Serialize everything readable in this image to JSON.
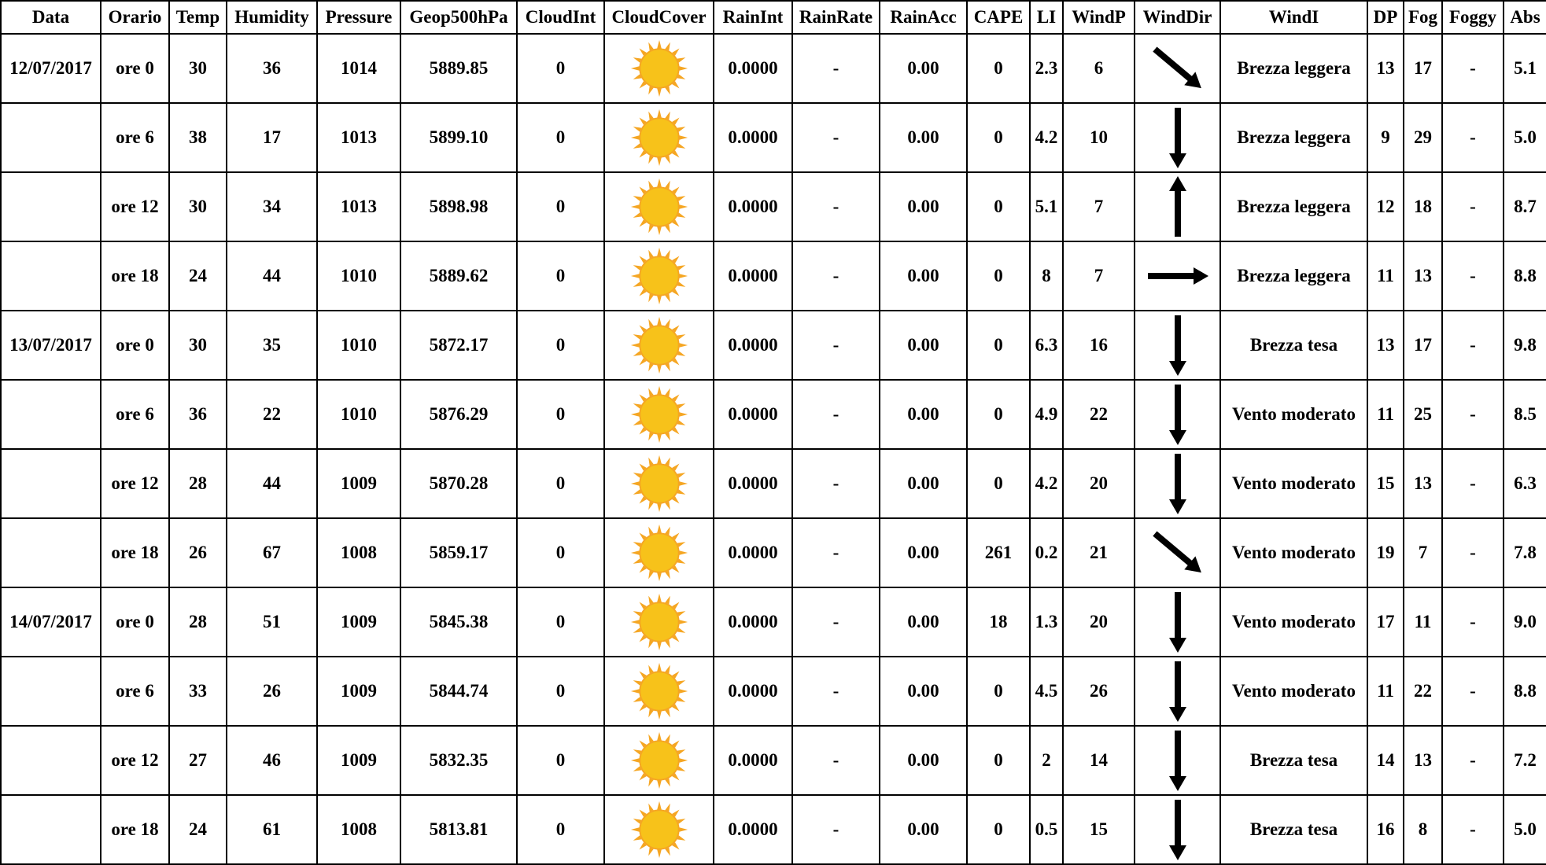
{
  "columns": [
    "Data",
    "Orario",
    "Temp",
    "Humidity",
    "Pressure",
    "Geop500hPa",
    "CloudInt",
    "CloudCover",
    "RainInt",
    "RainRate",
    "RainAcc",
    "CAPE",
    "LI",
    "WindP",
    "WindDir",
    "WindI",
    "DP",
    "Fog",
    "Foggy",
    "Abs"
  ],
  "colors": {
    "sun_center": "#f7c21a",
    "sun_rays": "#f5a623",
    "arrow": "#000000",
    "border": "#000000"
  },
  "rows": [
    {
      "date": "12/07/2017",
      "time": "ore 0",
      "temp": "30",
      "humidity": "36",
      "pressure": "1014",
      "geop": "5889.85",
      "cloud_int": "0",
      "cloud_cover_icon": "sun-icon",
      "rain_int": "0.0000",
      "rain_rate": "-",
      "rain_acc": "0.00",
      "cape": "0",
      "li": "2.3",
      "wind_p": "6",
      "wind_dir": "arrow-down-right-icon",
      "wind_i": "Brezza leggera",
      "dp": "13",
      "fog": "17",
      "foggy": "-",
      "abs": "5.1"
    },
    {
      "date": "",
      "time": "ore 6",
      "temp": "38",
      "humidity": "17",
      "pressure": "1013",
      "geop": "5899.10",
      "cloud_int": "0",
      "cloud_cover_icon": "sun-icon",
      "rain_int": "0.0000",
      "rain_rate": "-",
      "rain_acc": "0.00",
      "cape": "0",
      "li": "4.2",
      "wind_p": "10",
      "wind_dir": "arrow-down-icon",
      "wind_i": "Brezza leggera",
      "dp": "9",
      "fog": "29",
      "foggy": "-",
      "abs": "5.0"
    },
    {
      "date": "",
      "time": "ore 12",
      "temp": "30",
      "humidity": "34",
      "pressure": "1013",
      "geop": "5898.98",
      "cloud_int": "0",
      "cloud_cover_icon": "sun-icon",
      "rain_int": "0.0000",
      "rain_rate": "-",
      "rain_acc": "0.00",
      "cape": "0",
      "li": "5.1",
      "wind_p": "7",
      "wind_dir": "arrow-up-icon",
      "wind_i": "Brezza leggera",
      "dp": "12",
      "fog": "18",
      "foggy": "-",
      "abs": "8.7"
    },
    {
      "date": "",
      "time": "ore 18",
      "temp": "24",
      "humidity": "44",
      "pressure": "1010",
      "geop": "5889.62",
      "cloud_int": "0",
      "cloud_cover_icon": "sun-icon",
      "rain_int": "0.0000",
      "rain_rate": "-",
      "rain_acc": "0.00",
      "cape": "0",
      "li": "8",
      "wind_p": "7",
      "wind_dir": "arrow-right-icon",
      "wind_i": "Brezza leggera",
      "dp": "11",
      "fog": "13",
      "foggy": "-",
      "abs": "8.8"
    },
    {
      "date": "13/07/2017",
      "time": "ore 0",
      "temp": "30",
      "humidity": "35",
      "pressure": "1010",
      "geop": "5872.17",
      "cloud_int": "0",
      "cloud_cover_icon": "sun-icon",
      "rain_int": "0.0000",
      "rain_rate": "-",
      "rain_acc": "0.00",
      "cape": "0",
      "li": "6.3",
      "wind_p": "16",
      "wind_dir": "arrow-down-icon",
      "wind_i": "Brezza tesa",
      "dp": "13",
      "fog": "17",
      "foggy": "-",
      "abs": "9.8"
    },
    {
      "date": "",
      "time": "ore 6",
      "temp": "36",
      "humidity": "22",
      "pressure": "1010",
      "geop": "5876.29",
      "cloud_int": "0",
      "cloud_cover_icon": "sun-icon",
      "rain_int": "0.0000",
      "rain_rate": "-",
      "rain_acc": "0.00",
      "cape": "0",
      "li": "4.9",
      "wind_p": "22",
      "wind_dir": "arrow-down-icon",
      "wind_i": "Vento moderato",
      "dp": "11",
      "fog": "25",
      "foggy": "-",
      "abs": "8.5"
    },
    {
      "date": "",
      "time": "ore 12",
      "temp": "28",
      "humidity": "44",
      "pressure": "1009",
      "geop": "5870.28",
      "cloud_int": "0",
      "cloud_cover_icon": "sun-icon",
      "rain_int": "0.0000",
      "rain_rate": "-",
      "rain_acc": "0.00",
      "cape": "0",
      "li": "4.2",
      "wind_p": "20",
      "wind_dir": "arrow-down-icon",
      "wind_i": "Vento moderato",
      "dp": "15",
      "fog": "13",
      "foggy": "-",
      "abs": "6.3"
    },
    {
      "date": "",
      "time": "ore 18",
      "temp": "26",
      "humidity": "67",
      "pressure": "1008",
      "geop": "5859.17",
      "cloud_int": "0",
      "cloud_cover_icon": "sun-icon",
      "rain_int": "0.0000",
      "rain_rate": "-",
      "rain_acc": "0.00",
      "cape": "261",
      "li": "0.2",
      "wind_p": "21",
      "wind_dir": "arrow-down-right-icon",
      "wind_i": "Vento moderato",
      "dp": "19",
      "fog": "7",
      "foggy": "-",
      "abs": "7.8"
    },
    {
      "date": "14/07/2017",
      "time": "ore 0",
      "temp": "28",
      "humidity": "51",
      "pressure": "1009",
      "geop": "5845.38",
      "cloud_int": "0",
      "cloud_cover_icon": "sun-icon",
      "rain_int": "0.0000",
      "rain_rate": "-",
      "rain_acc": "0.00",
      "cape": "18",
      "li": "1.3",
      "wind_p": "20",
      "wind_dir": "arrow-down-icon",
      "wind_i": "Vento moderato",
      "dp": "17",
      "fog": "11",
      "foggy": "-",
      "abs": "9.0"
    },
    {
      "date": "",
      "time": "ore 6",
      "temp": "33",
      "humidity": "26",
      "pressure": "1009",
      "geop": "5844.74",
      "cloud_int": "0",
      "cloud_cover_icon": "sun-icon",
      "rain_int": "0.0000",
      "rain_rate": "-",
      "rain_acc": "0.00",
      "cape": "0",
      "li": "4.5",
      "wind_p": "26",
      "wind_dir": "arrow-down-icon",
      "wind_i": "Vento moderato",
      "dp": "11",
      "fog": "22",
      "foggy": "-",
      "abs": "8.8"
    },
    {
      "date": "",
      "time": "ore 12",
      "temp": "27",
      "humidity": "46",
      "pressure": "1009",
      "geop": "5832.35",
      "cloud_int": "0",
      "cloud_cover_icon": "sun-icon",
      "rain_int": "0.0000",
      "rain_rate": "-",
      "rain_acc": "0.00",
      "cape": "0",
      "li": "2",
      "wind_p": "14",
      "wind_dir": "arrow-down-icon",
      "wind_i": "Brezza tesa",
      "dp": "14",
      "fog": "13",
      "foggy": "-",
      "abs": "7.2"
    },
    {
      "date": "",
      "time": "ore 18",
      "temp": "24",
      "humidity": "61",
      "pressure": "1008",
      "geop": "5813.81",
      "cloud_int": "0",
      "cloud_cover_icon": "sun-icon",
      "rain_int": "0.0000",
      "rain_rate": "-",
      "rain_acc": "0.00",
      "cape": "0",
      "li": "0.5",
      "wind_p": "15",
      "wind_dir": "arrow-down-icon",
      "wind_i": "Brezza tesa",
      "dp": "16",
      "fog": "8",
      "foggy": "-",
      "abs": "5.0"
    }
  ]
}
